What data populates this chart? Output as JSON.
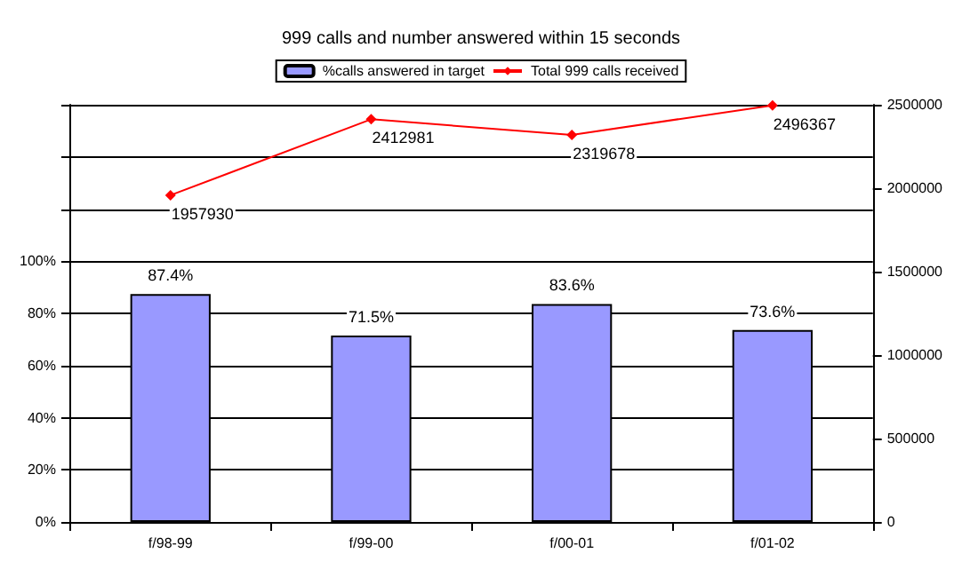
{
  "chart_data": {
    "type": "bar",
    "title": "999 calls and number answered within 15 seconds",
    "categories": [
      "f/98-99",
      "f/99-00",
      "f/00-01",
      "f/01-02"
    ],
    "series": [
      {
        "name": "%calls answered in target",
        "color": "#9999ff",
        "values": [
          87.4,
          71.5,
          83.6,
          73.6
        ],
        "value_labels": [
          "87.4%",
          "71.5%",
          "83.6%",
          "73.6%"
        ]
      },
      {
        "name": "Total 999 calls received",
        "type": "line",
        "axis": "y2",
        "color": "#ff0000",
        "values": [
          1957930,
          2412981,
          2319678,
          2496367
        ],
        "value_labels": [
          "1957930",
          "2412981",
          "2319678",
          "2496367"
        ]
      }
    ],
    "ylim": [
      0,
      160
    ],
    "yticks": [
      {
        "value": 0,
        "label": "0%"
      },
      {
        "value": 20,
        "label": "20%"
      },
      {
        "value": 40,
        "label": "40%"
      },
      {
        "value": 60,
        "label": "60%"
      },
      {
        "value": 80,
        "label": "80%"
      },
      {
        "value": 100,
        "label": "100%"
      },
      {
        "value": 120,
        "label": null
      },
      {
        "value": 140,
        "label": null
      },
      {
        "value": 160,
        "label": null
      }
    ],
    "y2lim": [
      0,
      2500000
    ],
    "y2ticks": [
      0,
      500000,
      1000000,
      1500000,
      2000000,
      2500000
    ],
    "grid": "y",
    "legend": "top",
    "marker": "diamond",
    "line_style": "solid"
  }
}
